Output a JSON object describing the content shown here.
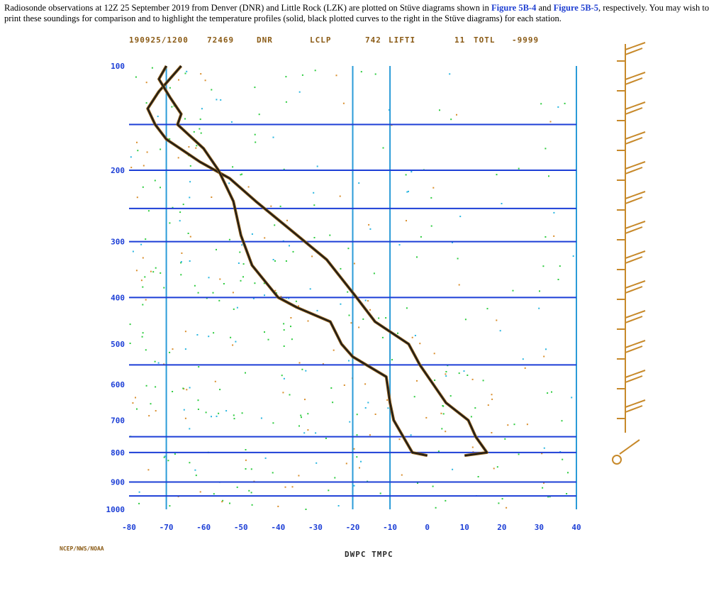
{
  "intro": {
    "text_before": "Radiosonde observations at 12Z 25 September 2019 from Denver (DNR) and Little Rock (LZK) are plotted on Stüve diagrams shown in ",
    "link1": "Figure 5B-4",
    "text_middle": " and ",
    "link2": "Figure 5B-5",
    "text_after": ", respectively. You may wish to print these soundings for comparison and to highlight the temperature profiles (solid, black plotted curves to the right in the Stüve diagrams) for each station."
  },
  "header": {
    "date_time": "190925/1200",
    "station_id": "72469",
    "station": "DNR",
    "lclp": "LCLP",
    "index1": "742",
    "index2": "LIFTI",
    "index3": "11",
    "index4": "TOTL",
    "index5": "-9999"
  },
  "credit": "NCEP/NWS/NOAA",
  "colors": {
    "axis_blue": "#1d3fd6",
    "isotherm_cyan": "#2a9bd8",
    "profile": "#1a1a1a",
    "profile_outline": "#8a5a14",
    "dots_green": "#2ecc40",
    "dots_cyan": "#29b6e0",
    "dots_orange": "#d98e2c",
    "wind_barbs": "#c7892a"
  },
  "chart_data": {
    "type": "line",
    "title": "",
    "xlabel": "DWPC TMPC",
    "ylabel": "",
    "xlim": [
      -80,
      40
    ],
    "ylim": [
      1000,
      100
    ],
    "y_scale": "Stüve (p^0.286)",
    "x_ticks": [
      "-80",
      "-70",
      "-60",
      "-50",
      "-40",
      "-30",
      "-20",
      "-10",
      "0",
      "10",
      "20",
      "30",
      "40"
    ],
    "y_ticks": [
      "100",
      "200",
      "300",
      "400",
      "500",
      "600",
      "700",
      "800",
      "900",
      "1000"
    ],
    "isobars_drawn": [
      150,
      200,
      250,
      300,
      400,
      550,
      750,
      800,
      900,
      950
    ],
    "isotherms_drawn": [
      -70,
      -10,
      -20,
      40
    ],
    "series": [
      {
        "role": "temperature",
        "points": [
          {
            "t": -66,
            "p": 100
          },
          {
            "t": -72,
            "p": 120
          },
          {
            "t": -75,
            "p": 135
          },
          {
            "t": -73,
            "p": 150
          },
          {
            "t": -70,
            "p": 165
          },
          {
            "t": -61,
            "p": 190
          },
          {
            "t": -53,
            "p": 210
          },
          {
            "t": -46,
            "p": 240
          },
          {
            "t": -37,
            "p": 280
          },
          {
            "t": -27,
            "p": 330
          },
          {
            "t": -19,
            "p": 400
          },
          {
            "t": -14,
            "p": 450
          },
          {
            "t": -5,
            "p": 500
          },
          {
            "t": -2,
            "p": 550
          },
          {
            "t": 5,
            "p": 650
          },
          {
            "t": 11,
            "p": 700
          },
          {
            "t": 13,
            "p": 750
          },
          {
            "t": 16,
            "p": 800
          },
          {
            "t": 10,
            "p": 810
          }
        ]
      },
      {
        "role": "dewpoint",
        "points": [
          {
            "t": -70,
            "p": 100
          },
          {
            "t": -72,
            "p": 110
          },
          {
            "t": -69,
            "p": 125
          },
          {
            "t": -66,
            "p": 140
          },
          {
            "t": -67,
            "p": 150
          },
          {
            "t": -60,
            "p": 175
          },
          {
            "t": -56,
            "p": 200
          },
          {
            "t": -52,
            "p": 240
          },
          {
            "t": -50,
            "p": 290
          },
          {
            "t": -47,
            "p": 340
          },
          {
            "t": -40,
            "p": 400
          },
          {
            "t": -35,
            "p": 420
          },
          {
            "t": -26,
            "p": 450
          },
          {
            "t": -23,
            "p": 500
          },
          {
            "t": -20,
            "p": 530
          },
          {
            "t": -11,
            "p": 580
          },
          {
            "t": -10,
            "p": 650
          },
          {
            "t": -9,
            "p": 700
          },
          {
            "t": -4,
            "p": 800
          },
          {
            "t": 0,
            "p": 810
          }
        ]
      }
    ]
  }
}
